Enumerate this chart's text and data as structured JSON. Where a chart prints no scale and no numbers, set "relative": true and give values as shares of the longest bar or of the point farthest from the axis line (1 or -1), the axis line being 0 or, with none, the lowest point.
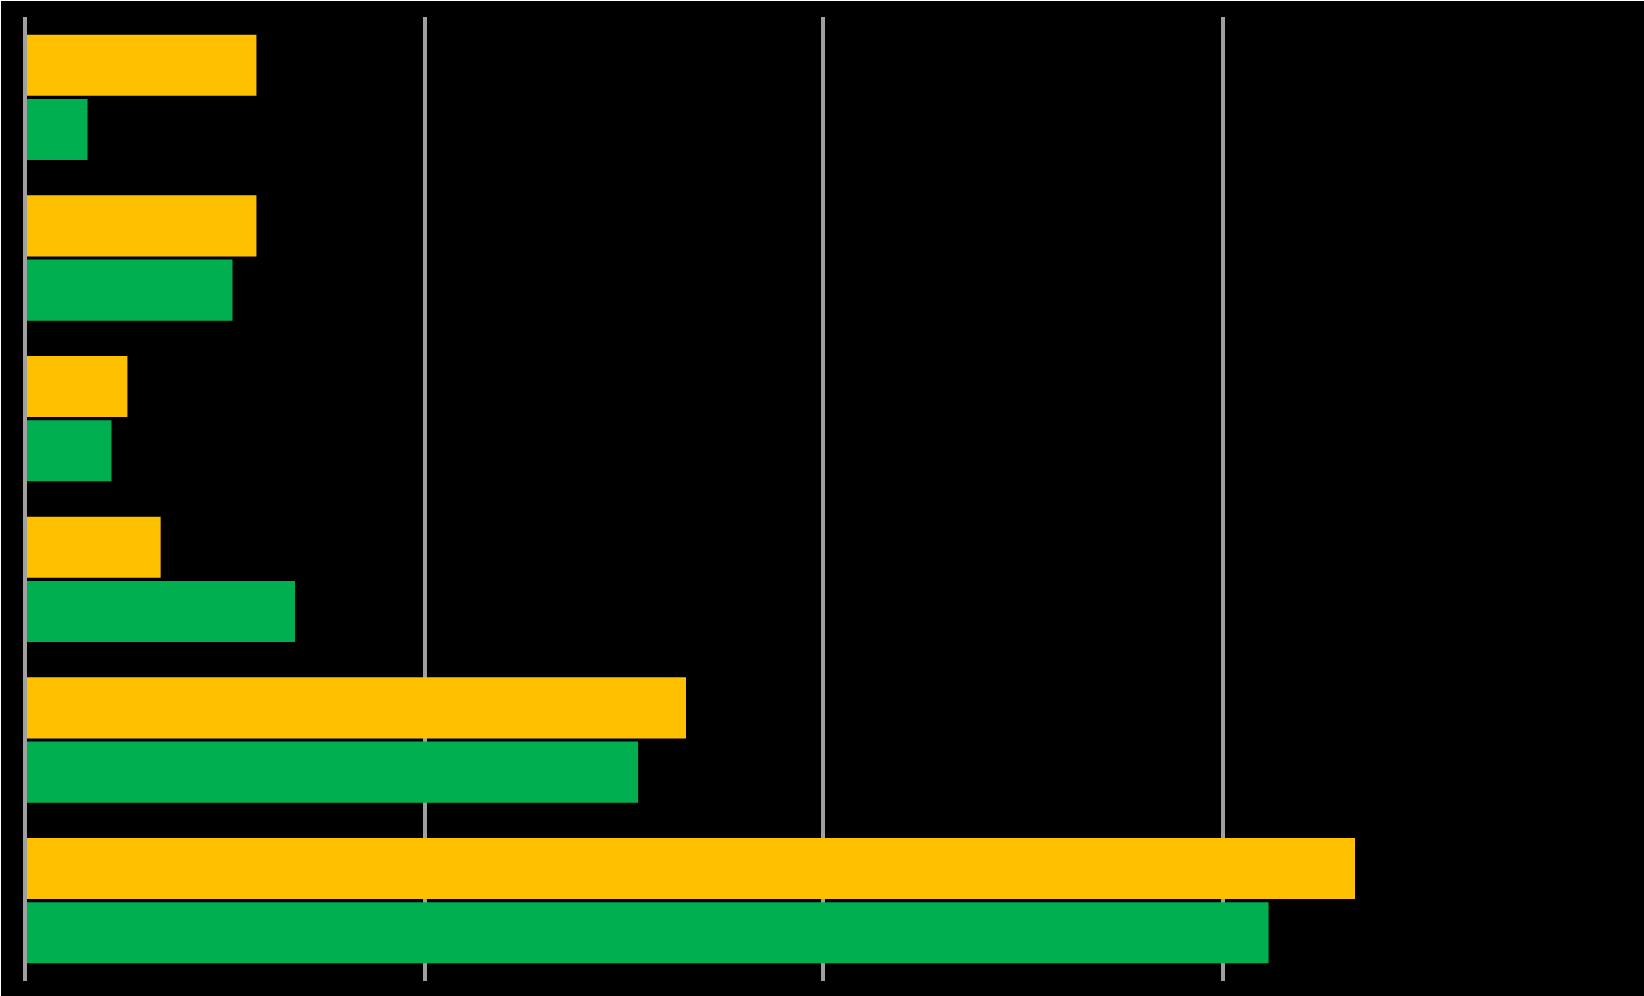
{
  "chart_data": {
    "type": "bar",
    "orientation": "horizontal",
    "relative": true,
    "grid": "x",
    "categories": [
      null,
      null,
      null,
      null,
      null,
      null
    ],
    "series": [
      {
        "color": "#ffc000",
        "values": [
          0.174,
          0.174,
          0.077,
          0.102,
          0.497,
          1
        ]
      },
      {
        "color": "#00b050",
        "values": [
          0.047,
          0.156,
          0.065,
          0.203,
          0.461,
          0.935
        ]
      }
    ]
  }
}
